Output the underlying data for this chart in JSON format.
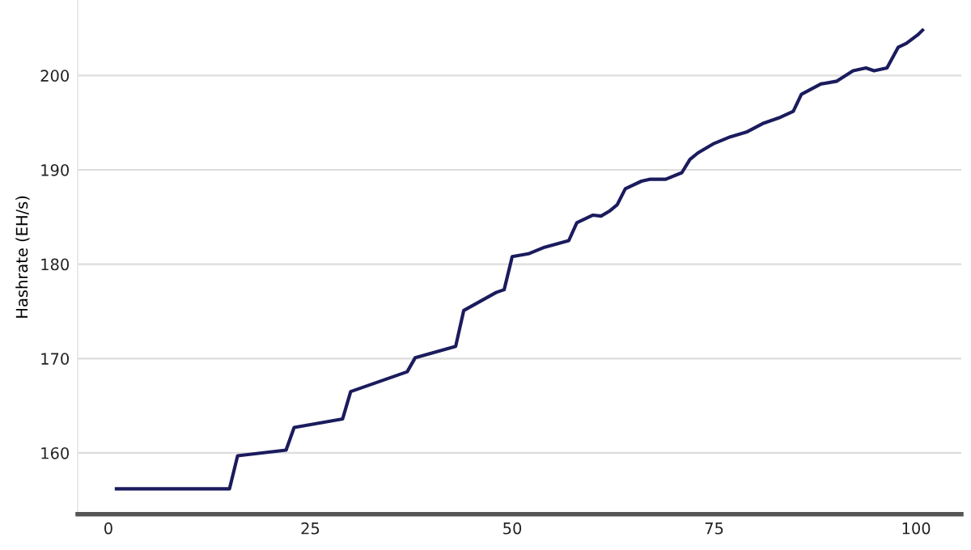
{
  "chart_data": {
    "type": "line",
    "ylabel": "Hashrate (EH/s)",
    "x": [
      1,
      15,
      16,
      22,
      23,
      29,
      30,
      37,
      38,
      43,
      44,
      48,
      49,
      50,
      52,
      54,
      57,
      58,
      60,
      61,
      62,
      63,
      64,
      66,
      67,
      69,
      71,
      72,
      73,
      75,
      77,
      79,
      81,
      83,
      84.8,
      85.8,
      88.2,
      90.2,
      92.2,
      93.8,
      94.8,
      96.4,
      97.8,
      98.8,
      100.2,
      100.8
    ],
    "series": [
      {
        "color": "#1b1b5e",
        "values": [
          156.2,
          156.2,
          159.7,
          160.3,
          162.7,
          163.6,
          166.5,
          168.6,
          170.1,
          171.3,
          175.1,
          177.0,
          177.3,
          180.8,
          181.1,
          181.8,
          182.5,
          184.4,
          185.2,
          185.1,
          185.6,
          186.3,
          188.0,
          188.8,
          189.0,
          189.0,
          189.7,
          191.1,
          191.8,
          192.8,
          193.5,
          194.0,
          194.9,
          195.5,
          196.2,
          198.0,
          199.1,
          199.4,
          200.5,
          200.8,
          200.5,
          200.8,
          203.0,
          203.4,
          204.3,
          204.8
        ]
      }
    ],
    "xlim": [
      -3.8,
      105.6
    ],
    "ylim": [
      153.5,
      208
    ],
    "xticks": [
      0,
      25,
      50,
      75,
      100
    ],
    "yticks": [
      160,
      170,
      180,
      190,
      200
    ],
    "grid": "y"
  }
}
